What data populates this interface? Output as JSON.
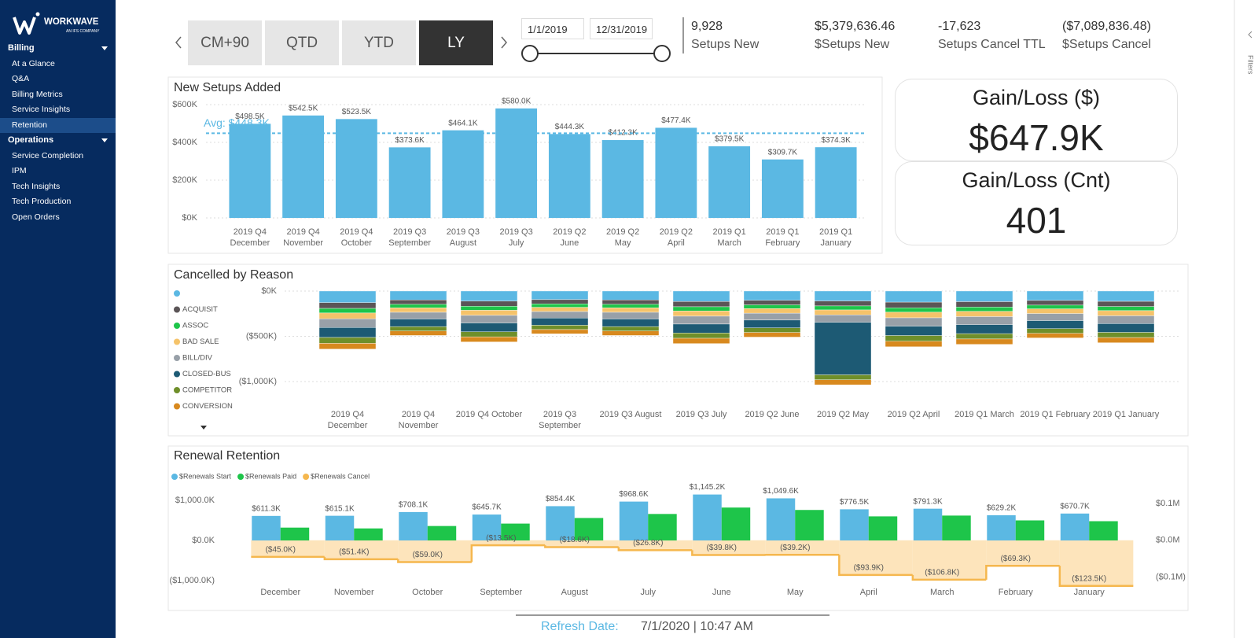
{
  "sidebar": {
    "logo": "WORKWAVE",
    "logo_sub": "AN IFS COMPANY",
    "sections": [
      {
        "title": "Billing",
        "items": [
          "At a Glance",
          "Q&A",
          "Billing Metrics",
          "Service Insights",
          "Retention"
        ]
      },
      {
        "title": "Operations",
        "items": [
          "Service Completion",
          "IPM",
          "Tech Insights",
          "Tech Production",
          "Open Orders"
        ]
      }
    ],
    "active": "Retention"
  },
  "period_tabs": {
    "items": [
      "CM+90",
      "QTD",
      "YTD",
      "LY"
    ],
    "active": "LY"
  },
  "date_range": {
    "start": "1/1/2019",
    "end": "12/31/2019"
  },
  "kpis": [
    {
      "value": "9,928",
      "label": "Setups New"
    },
    {
      "value": "$5,379,636.46",
      "label": "$Setups New"
    },
    {
      "value": "-17,623",
      "label": "Setups Cancel TTL"
    },
    {
      "value": "($7,089,836.48)",
      "label": "$Setups Cancel"
    }
  ],
  "cards": [
    {
      "title": "Gain/Loss ($)",
      "value": "$647.9K"
    },
    {
      "title": "Gain/Loss (Cnt)",
      "value": "401"
    }
  ],
  "chart_data": [
    {
      "type": "bar",
      "title": "New Setups Added",
      "categories": [
        "2019 Q4 December",
        "2019 Q4 November",
        "2019 Q4 October",
        "2019 Q3 September",
        "2019 Q3 August",
        "2019 Q3 July",
        "2019 Q2 June",
        "2019 Q2 May",
        "2019 Q2 April",
        "2019 Q1 March",
        "2019 Q1 February",
        "2019 Q1 January"
      ],
      "values": [
        498.5,
        542.5,
        523.5,
        373.6,
        464.1,
        580.0,
        444.3,
        412.3,
        477.4,
        379.5,
        309.7,
        374.3
      ],
      "value_labels": [
        "$498.5K",
        "$542.5K",
        "$523.5K",
        "$373.6K",
        "$464.1K",
        "$580.0K",
        "$444.3K",
        "$412.3K",
        "$477.4K",
        "$379.5K",
        "$309.7K",
        "$374.3K"
      ],
      "color": "#5bb8e3",
      "ylim": [
        0,
        620
      ],
      "yticks": [
        {
          "value": 0,
          "label": "$0K"
        },
        {
          "value": 200,
          "label": "$200K"
        },
        {
          "value": 400,
          "label": "$400K"
        },
        {
          "value": 600,
          "label": "$600K"
        }
      ],
      "grid": true,
      "average": {
        "value": 448.3,
        "label": "Avg: $448.3K",
        "color": "#5bb8e3"
      }
    },
    {
      "type": "stacked_bar",
      "title": "Cancelled by Reason",
      "categories": [
        "2019 Q4 December",
        "2019 Q4 November",
        "2019 Q4 October",
        "2019 Q3 September",
        "2019 Q3 August",
        "2019 Q3 July",
        "2019 Q2 June",
        "2019 Q2 May",
        "2019 Q2 April",
        "2019 Q1 March",
        "2019 Q1 February",
        "2019 Q1 January"
      ],
      "series": [
        {
          "name": null,
          "color": "#5bb8e3",
          "values": [
            -128,
            -98,
            -112,
            -95,
            -98,
            -116,
            -102,
            -110,
            -123,
            -118,
            -104,
            -114
          ]
        },
        {
          "name": "ACQUISIT",
          "color": "#5b5557",
          "values": [
            -64,
            -49,
            -56,
            -47,
            -49,
            -58,
            -51,
            -55,
            -62,
            -59,
            -52,
            -57
          ]
        },
        {
          "name": "ASSOC",
          "color": "#1ec54a",
          "values": [
            -51,
            -39,
            -45,
            -38,
            -39,
            -46,
            -41,
            -44,
            -49,
            -47,
            -41,
            -46
          ]
        },
        {
          "name": "BAD SALE",
          "color": "#f5c36a",
          "values": [
            -64,
            -49,
            -56,
            -47,
            -49,
            -58,
            -51,
            -55,
            -62,
            -59,
            -52,
            -57
          ]
        },
        {
          "name": "BILL/DIV",
          "color": "#98a0a8",
          "values": [
            -96,
            -74,
            -84,
            -71,
            -74,
            -87,
            -76,
            -82,
            -92,
            -88,
            -78,
            -86
          ]
        },
        {
          "name": "CLOSED-BUS",
          "color": "#1d5a74",
          "values": [
            -110,
            -84,
            -97,
            -80,
            -84,
            -99,
            -86,
            -580,
            -104,
            -100,
            -88,
            -97
          ]
        },
        {
          "name": "COMPETITOR",
          "color": "#6f8f2a",
          "values": [
            -65,
            -49,
            -56,
            -48,
            -49,
            -58,
            -51,
            -55,
            -62,
            -59,
            -52,
            -57
          ]
        },
        {
          "name": "CONVERSION",
          "color": "#d8891e",
          "values": [
            -64,
            -49,
            -56,
            -47,
            -49,
            -58,
            -51,
            -55,
            -62,
            -59,
            -51,
            -57
          ]
        }
      ],
      "ylim": [
        -1050,
        30
      ],
      "yticks": [
        {
          "value": -1000,
          "label": "($1,000K)"
        },
        {
          "value": -500,
          "label": "($500K)"
        },
        {
          "value": 0,
          "label": "$0K"
        }
      ],
      "grid": true
    },
    {
      "type": "combo",
      "title": "Renewal Retention",
      "categories": [
        "December",
        "November",
        "October",
        "September",
        "August",
        "July",
        "June",
        "May",
        "April",
        "March",
        "February",
        "January"
      ],
      "series": [
        {
          "name": "$Renewals Start",
          "color": "#5bb8e3",
          "values": [
            611.3,
            615.1,
            708.1,
            645.7,
            854.4,
            968.6,
            1145.2,
            1049.6,
            776.5,
            791.3,
            629.2,
            670.7
          ],
          "value_labels": [
            "$611.3K",
            "$615.1K",
            "$708.1K",
            "$645.7K",
            "$854.4K",
            "$968.6K",
            "$1,145.2K",
            "$1,049.6K",
            "$776.5K",
            "$791.3K",
            "$629.2K",
            "$670.7K"
          ]
        },
        {
          "name": "$Renewals Paid",
          "color": "#1ec54a",
          "values": [
            320,
            300,
            360,
            420,
            560,
            660,
            820,
            760,
            600,
            620,
            500,
            480
          ]
        },
        {
          "name": "$Renewals Cancel",
          "color": "#f5b74e",
          "area_color": "#fde4bb",
          "axis": "y2",
          "values": [
            -0.045,
            -0.0514,
            -0.059,
            -0.0135,
            -0.0186,
            -0.0268,
            -0.0398,
            -0.0392,
            -0.0939,
            -0.1068,
            -0.0693,
            -0.1235
          ],
          "value_labels": [
            "($45.0K)",
            "($51.4K)",
            "($59.0K)",
            "($13.5K)",
            "($18.6K)",
            "($26.8K)",
            "($39.8K)",
            "($39.2K)",
            "($93.9K)",
            "($106.8K)",
            "($69.3K)",
            "($123.5K)"
          ]
        }
      ],
      "ylim": [
        -1100,
        1200
      ],
      "yticks": [
        {
          "value": -1000,
          "label": "($1,000.0K)"
        },
        {
          "value": 0,
          "label": "$0.0K"
        },
        {
          "value": 1000,
          "label": "$1,000.0K"
        }
      ],
      "y2lim": [
        -0.12,
        0.13
      ],
      "y2ticks": [
        {
          "value": -0.1,
          "label": "($0.1M)"
        },
        {
          "value": 0,
          "label": "$0.0M"
        },
        {
          "value": 0.1,
          "label": "$0.1M"
        }
      ],
      "grid": false
    }
  ],
  "footer": {
    "label": "Refresh Date:",
    "value": "7/1/2020 | 10:47 AM"
  },
  "filters_pane": {
    "label": "Filters"
  }
}
